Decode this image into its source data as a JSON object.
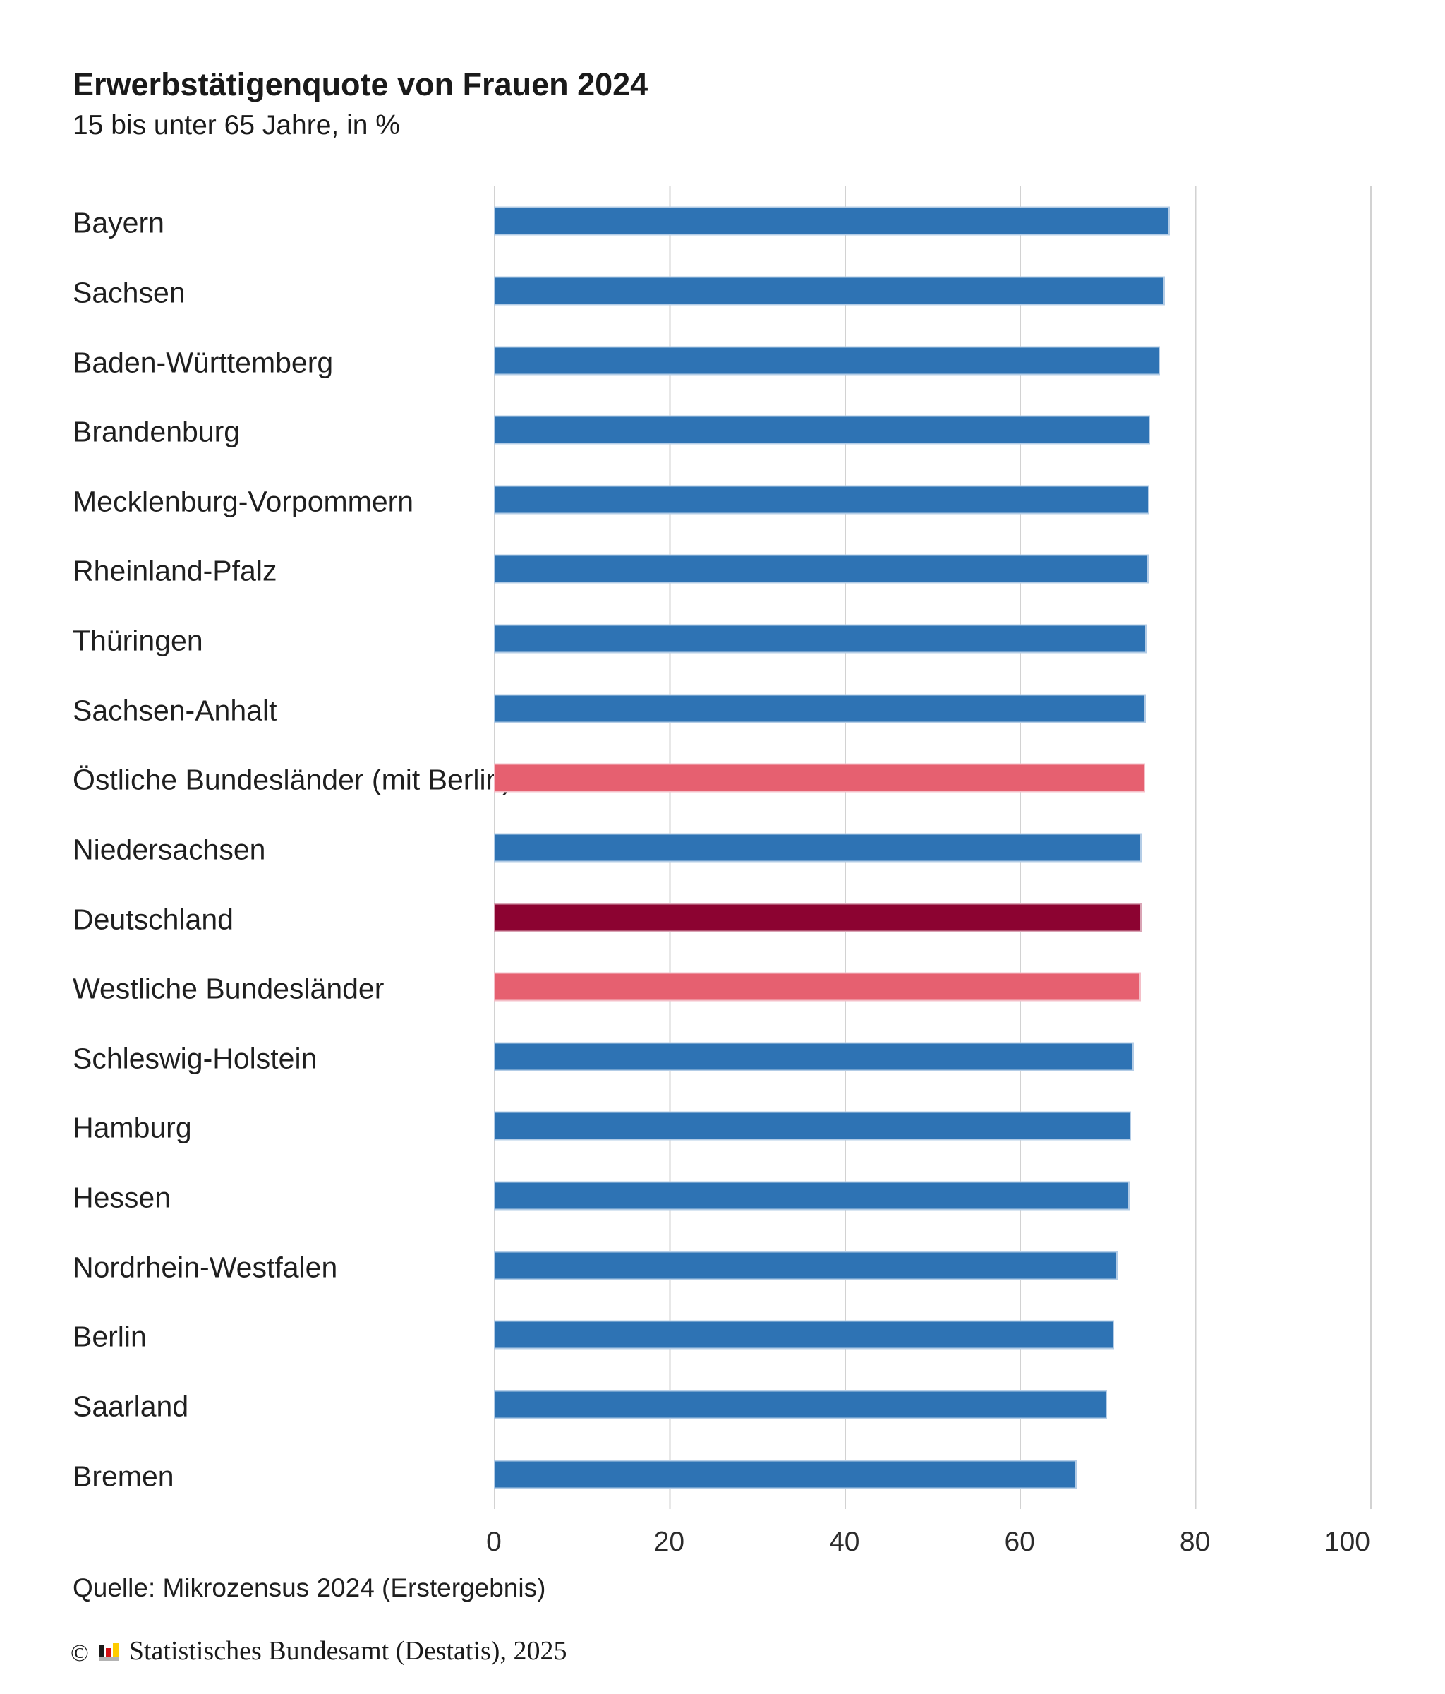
{
  "header": {
    "title": "Erwerbstätigenquote von Frauen 2024",
    "subtitle": "15 bis unter 65 Jahre, in %"
  },
  "chart_data": {
    "type": "bar",
    "orientation": "horizontal",
    "title": "Erwerbstätigenquote von Frauen 2024",
    "subtitle": "15 bis unter 65 Jahre, in %",
    "xlabel": "",
    "ylabel": "",
    "xlim": [
      0,
      100
    ],
    "x_ticks": [
      0,
      20,
      40,
      60,
      80,
      100
    ],
    "grid": "vertical",
    "legend": "none",
    "unit": "%",
    "categories": [
      "Bayern",
      "Sachsen",
      "Baden-Württemberg",
      "Brandenburg",
      "Mecklenburg-Vorpommern",
      "Rheinland-Pfalz",
      "Thüringen",
      "Sachsen-Anhalt",
      "Östliche Bundesländer (mit Berlin)",
      "Niedersachsen",
      "Deutschland",
      "Westliche Bundesländer",
      "Schleswig-Holstein",
      "Hamburg",
      "Hessen",
      "Nordrhein-Westfalen",
      "Berlin",
      "Saarland",
      "Bremen"
    ],
    "values": [
      77.1,
      76.6,
      76.0,
      74.9,
      74.8,
      74.7,
      74.5,
      74.4,
      74.3,
      73.9,
      73.9,
      73.8,
      73.0,
      72.7,
      72.5,
      71.2,
      70.8,
      70.0,
      66.5
    ],
    "roles": [
      "state",
      "state",
      "state",
      "state",
      "state",
      "state",
      "state",
      "state",
      "aggregate",
      "state",
      "germany",
      "aggregate",
      "state",
      "state",
      "state",
      "state",
      "state",
      "state",
      "state"
    ],
    "colors": {
      "state": "#2e73b4",
      "aggregate": "#e66070",
      "germany": "#8c0331",
      "gridline": "#d2d2d2"
    }
  },
  "footer": {
    "source": "Quelle: Mikrozensus 2024 (Erstergebnis)",
    "copyright_symbol": "©",
    "copyright_text": "Statistisches Bundesamt (Destatis), 2025"
  },
  "logo": {
    "name": "destatis-logo",
    "bar_colors": {
      "black": "#1a1a1a",
      "red": "#d40f14",
      "yellow": "#ffcc00"
    },
    "base_color": "#b3b3b3"
  }
}
